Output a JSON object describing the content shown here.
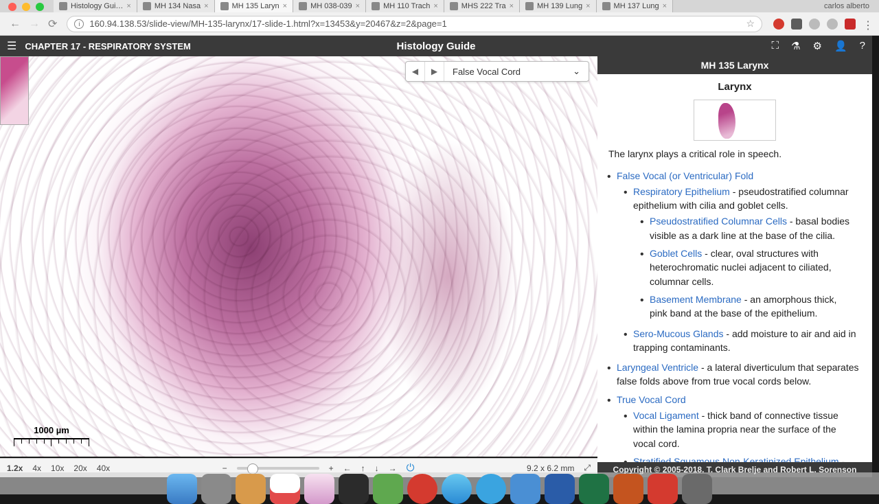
{
  "window": {
    "user": "carlos alberto"
  },
  "tabs": [
    {
      "label": "Histology Gui…"
    },
    {
      "label": "MH 134 Nasa"
    },
    {
      "label": "MH 135 Laryn",
      "active": true
    },
    {
      "label": "MH 038-039"
    },
    {
      "label": "MH 110 Trach"
    },
    {
      "label": "MHS 222 Tra"
    },
    {
      "label": "MH 139 Lung"
    },
    {
      "label": "MH 137 Lung"
    }
  ],
  "url": "160.94.138.53/slide-view/MH-135-larynx/17-slide-1.html?x=13453&y=20467&z=2&page=1",
  "guide": {
    "chapter": "CHAPTER 17 - RESPIRATORY SYSTEM",
    "app": "Histology Guide"
  },
  "dropdown": {
    "value": "False Vocal Cord"
  },
  "scalebar": "1000 µm",
  "zoomlevels": [
    "1.2x",
    "4x",
    "10x",
    "20x",
    "40x"
  ],
  "fov": "9.2 x 6.2 mm",
  "panel": {
    "header": "MH 135 Larynx",
    "title": "Larynx",
    "intro": "The larynx plays a critical role in speech.",
    "l1": "False Vocal (or Ventricular) Fold",
    "l2": "Respiratory Epithelium",
    "l2t": " - pseudostratified columnar epithelium with cilia and goblet cells.",
    "l3": "Pseudostratified Columnar Cells",
    "l3t": " - basal bodies visible as a dark line at the base of the cilia.",
    "l4": "Goblet Cells",
    "l4t": " - clear, oval structures with heterochromatic nuclei adjacent to ciliated, columnar cells.",
    "l5": "Basement Membrane",
    "l5t": " - an amorphous thick, pink band at the base of the epithelium.",
    "l6": "Sero-Mucous Glands",
    "l6t": " - add moisture to air and aid in trapping contaminants.",
    "l7": "Laryngeal Ventricle",
    "l7t": " - a lateral diverticulum that separates false folds above from true vocal cords below.",
    "l8": "True Vocal Cord",
    "l9": "Vocal Ligament",
    "l9t": " - thick band of connective tissue within the lamina propria near the surface of the vocal cord.",
    "l10": "Stratified Squamous Non-Keratinized Epithelium",
    "l10t": " -"
  },
  "copyright": "Copyright © 2005-2018. T. Clark Brelje and Robert L. Sorenson"
}
